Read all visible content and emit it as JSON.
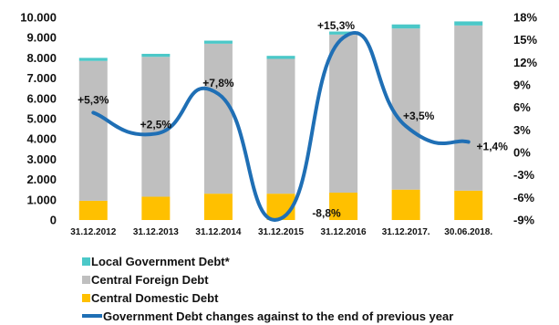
{
  "chart_data": {
    "type": "bar",
    "stacked": true,
    "categories": [
      "31.12.2012",
      "31.12.2013",
      "31.12.2014",
      "31.12.2015",
      "31.12.2016",
      "31.12.2017.",
      "30.06.2018."
    ],
    "series": [
      {
        "name": "Central Domestic Debt",
        "color": "#ffc000",
        "values": [
          950,
          1150,
          1300,
          1300,
          1350,
          1500,
          1450
        ]
      },
      {
        "name": "Central Foreign Debt",
        "color": "#bfbfbf",
        "values": [
          6900,
          6900,
          7400,
          6650,
          7800,
          7950,
          8150
        ]
      },
      {
        "name": "Local Government Debt*",
        "color": "#4bc8c8",
        "values": [
          150,
          150,
          150,
          150,
          150,
          200,
          200
        ]
      }
    ],
    "line_series": {
      "name": "Government Debt changes against to the end of previous year",
      "color": "#1f6fb5",
      "values": [
        5.3,
        2.5,
        7.8,
        -8.8,
        15.3,
        3.5,
        1.4
      ],
      "labels": [
        "+5,3%",
        "+2,5%",
        "+7,8%",
        "-8,8%",
        "+15,3%",
        "+3,5%",
        "+1,4%"
      ]
    },
    "y_left": {
      "range": [
        0,
        10000
      ],
      "ticks": [
        0,
        1000,
        2000,
        3000,
        4000,
        5000,
        6000,
        7000,
        8000,
        9000,
        10000
      ],
      "tick_labels": [
        "0",
        "1.000",
        "2.000",
        "3.000",
        "4.000",
        "5.000",
        "6.000",
        "7.000",
        "8.000",
        "9.000",
        "10.000"
      ]
    },
    "y_right": {
      "range": [
        -9,
        18
      ],
      "ticks": [
        -9,
        -6,
        -3,
        0,
        3,
        6,
        9,
        12,
        15,
        18
      ],
      "tick_labels": [
        "-9%",
        "-6%",
        "-3%",
        "0%",
        "3%",
        "6%",
        "9%",
        "12%",
        "15%",
        "18%"
      ]
    },
    "legend_position": "bottom-left",
    "legend_order": [
      "Local Government Debt*",
      "Central Foreign Debt",
      "Central Domestic Debt",
      "Government Debt changes against to the end of previous year"
    ]
  }
}
